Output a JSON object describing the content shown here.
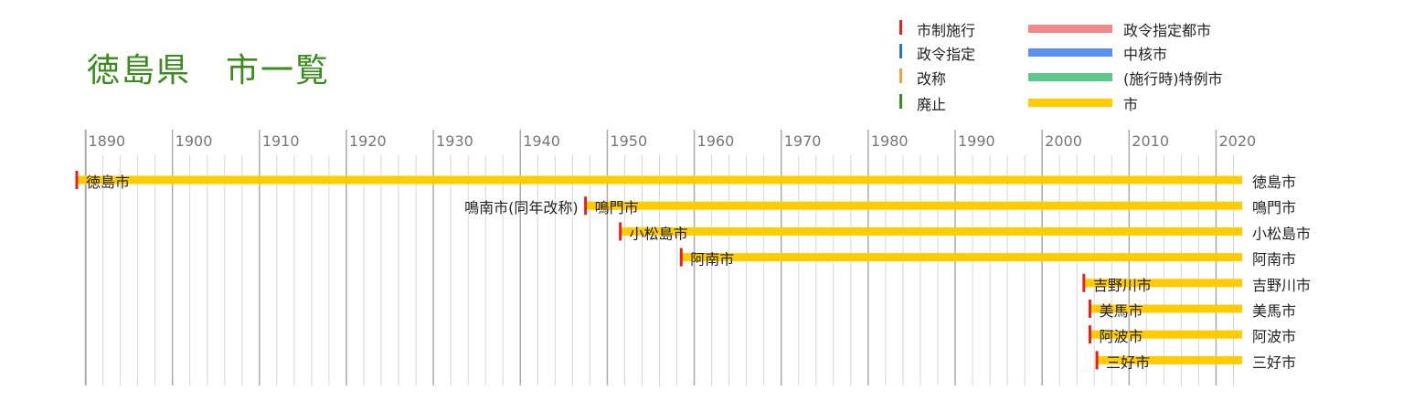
{
  "title": "徳島県　市一覧",
  "legend": {
    "markers": [
      {
        "label": "市制施行",
        "color": "#e8201a"
      },
      {
        "label": "政令指定",
        "color": "#2a6fdc"
      },
      {
        "label": "改称",
        "color": "#f0a040"
      },
      {
        "label": "廃止",
        "color": "#3a8c1c"
      }
    ],
    "bars": [
      {
        "label": "政令指定都市",
        "color": "#f08a8a"
      },
      {
        "label": "中核市",
        "color": "#5b8ff0"
      },
      {
        "label": "(施行時)特例市",
        "color": "#5cc98a"
      },
      {
        "label": "市",
        "color": "#ffcc00"
      }
    ]
  },
  "chart_data": {
    "type": "timeline",
    "x_axis": {
      "min": 1889,
      "max": 2023,
      "tick_labels": [
        "1890",
        "1900",
        "1910",
        "1920",
        "1930",
        "1940",
        "1950",
        "1960",
        "1970",
        "1980",
        "1990",
        "2000",
        "2010",
        "2020"
      ],
      "major_step": 10,
      "minor_step": 2
    },
    "rows": [
      {
        "name": "徳島市",
        "start": 1889,
        "end": 2023,
        "event": "市制施行",
        "end_label": "徳島市"
      },
      {
        "name": "鳴門市",
        "prior_name": "鳴南市(同年改称)",
        "start": 1947.5,
        "end": 2023,
        "event": "市制施行",
        "end_label": "鳴門市"
      },
      {
        "name": "小松島市",
        "start": 1951.5,
        "end": 2023,
        "event": "市制施行",
        "end_label": "小松島市"
      },
      {
        "name": "阿南市",
        "start": 1958.5,
        "end": 2023,
        "event": "市制施行",
        "end_label": "阿南市"
      },
      {
        "name": "吉野川市",
        "start": 2004.8,
        "end": 2023,
        "event": "市制施行",
        "end_label": "吉野川市"
      },
      {
        "name": "美馬市",
        "start": 2005.5,
        "end": 2023,
        "event": "市制施行",
        "end_label": "美馬市"
      },
      {
        "name": "阿波市",
        "start": 2005.5,
        "end": 2023,
        "event": "市制施行",
        "end_label": "阿波市"
      },
      {
        "name": "三好市",
        "start": 2006.3,
        "end": 2023,
        "event": "市制施行",
        "end_label": "三好市"
      }
    ]
  }
}
